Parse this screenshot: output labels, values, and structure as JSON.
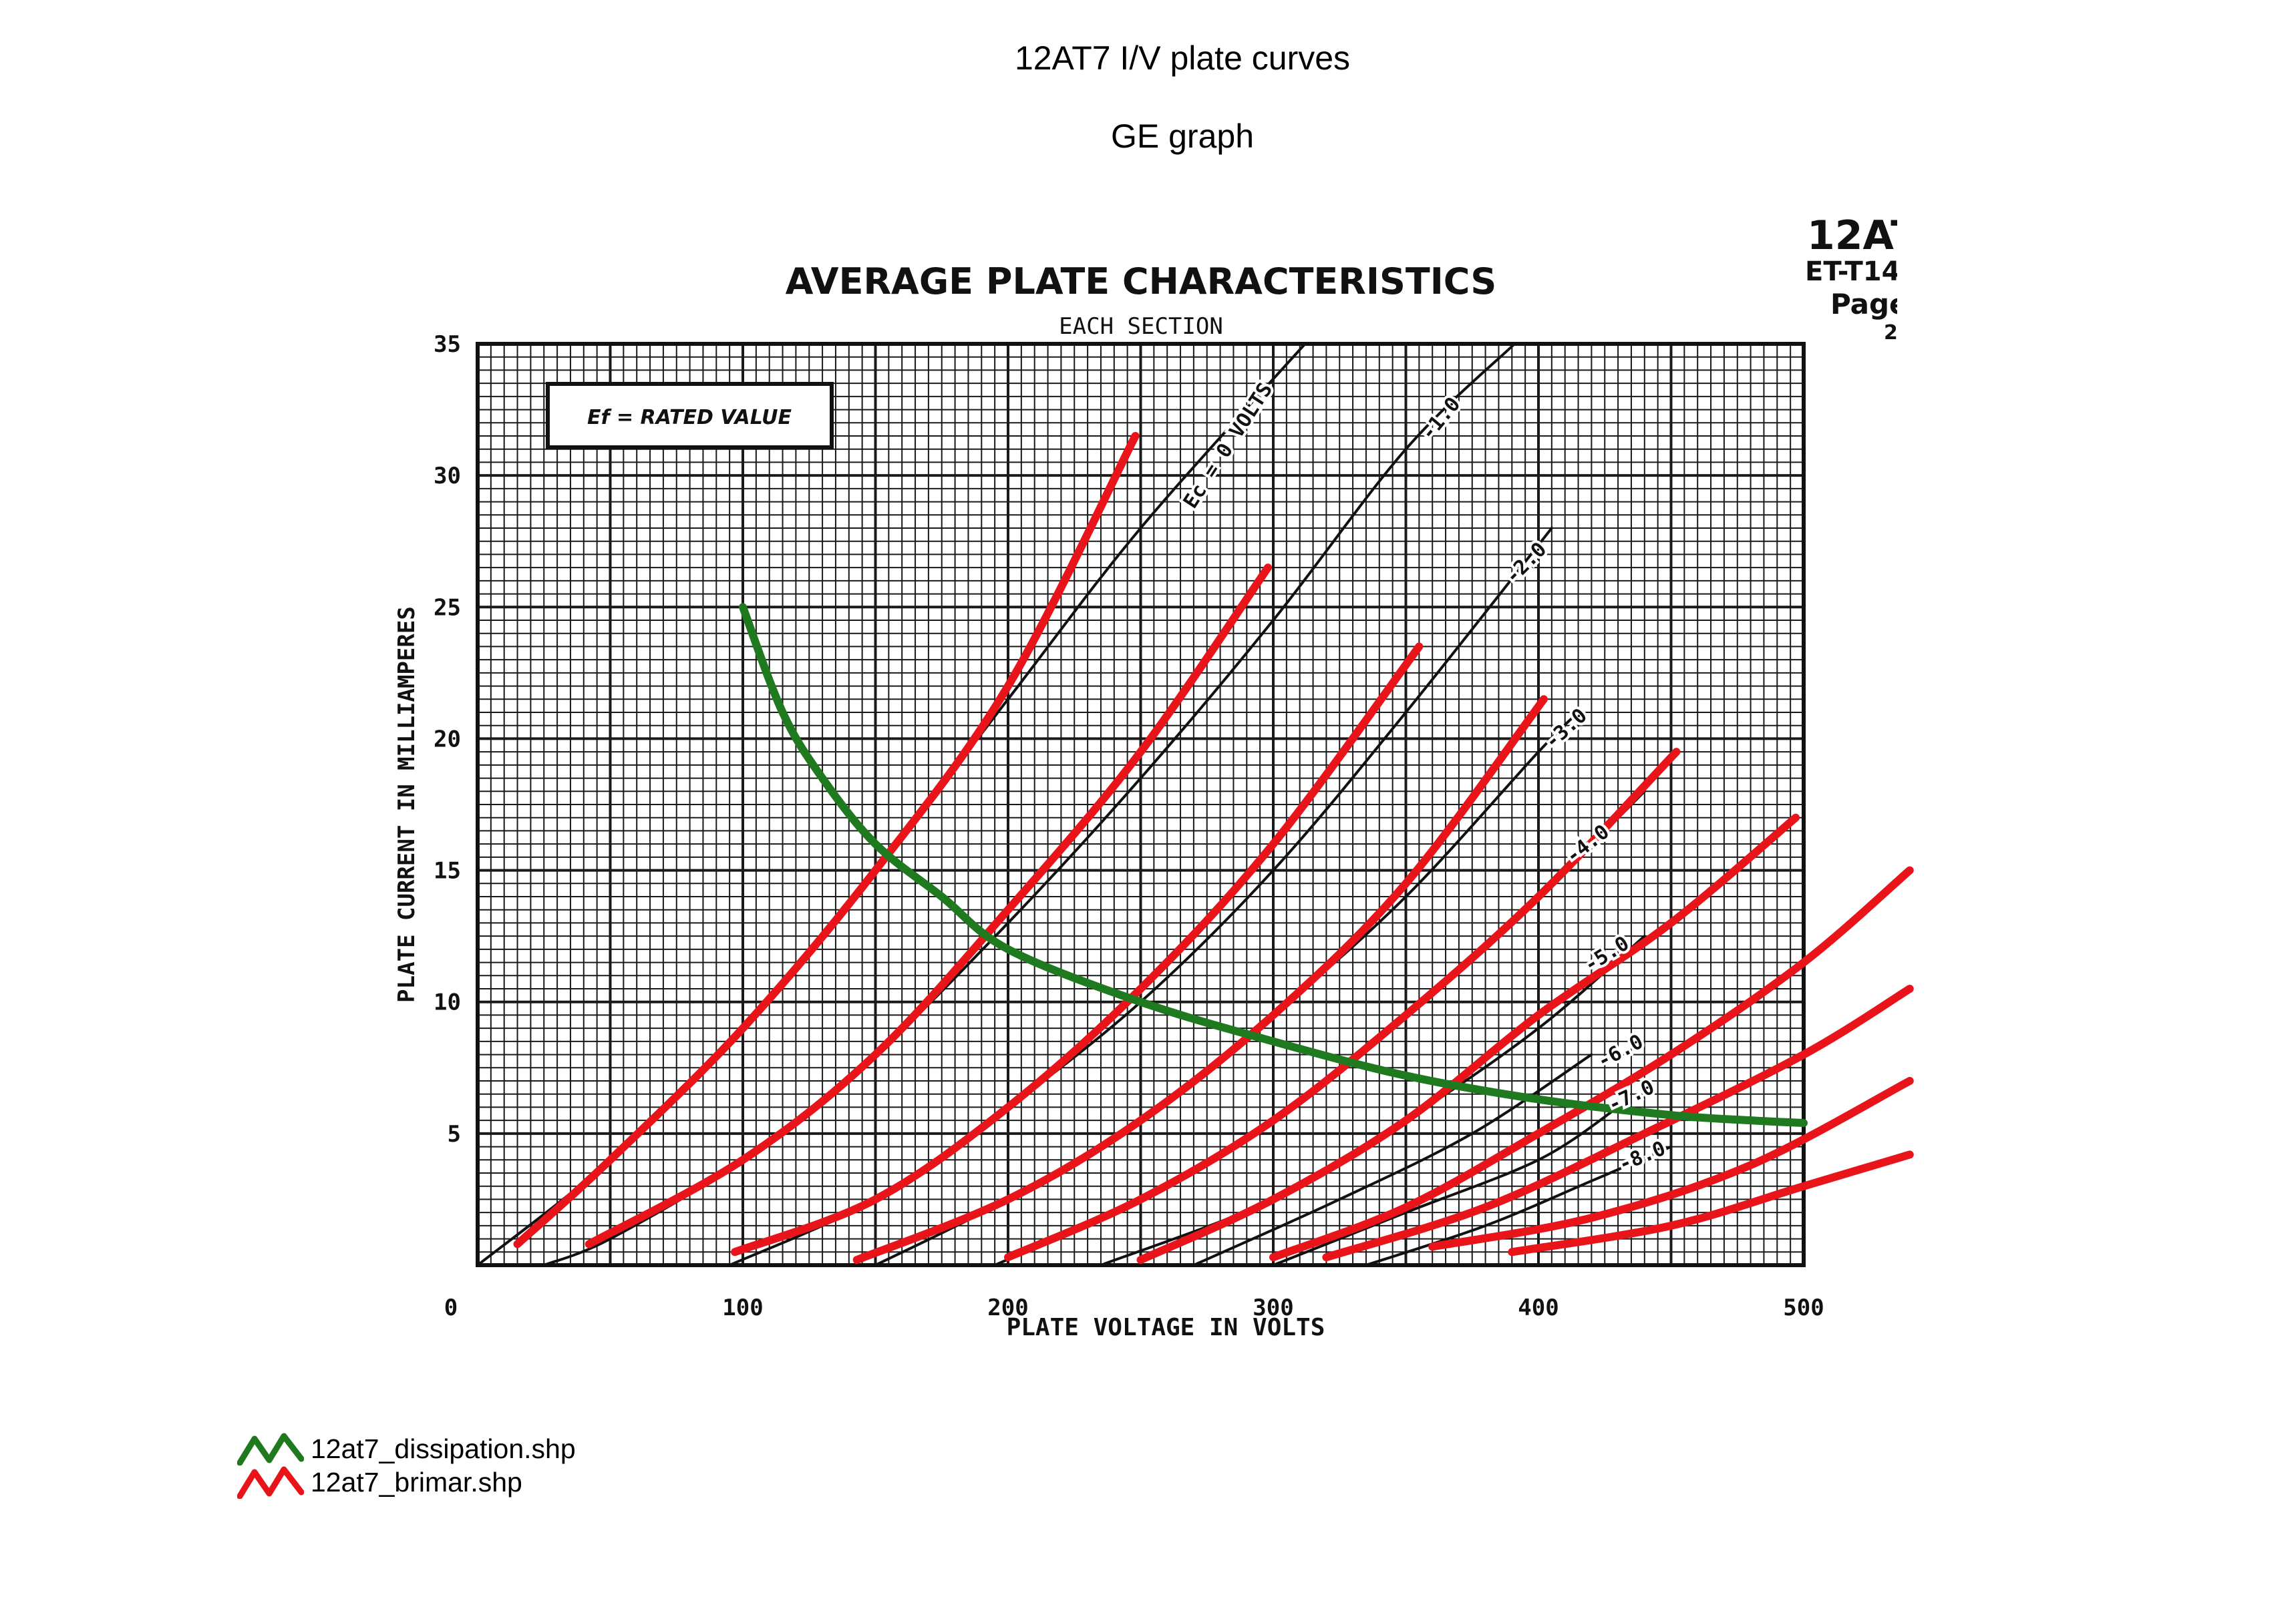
{
  "page": {
    "title": "12AT7  I/V plate curves",
    "subtitle": "GE graph"
  },
  "datasheet": {
    "tube": "12AT",
    "code": "ET-T14",
    "page": "Page",
    "page_num": "2"
  },
  "legend": {
    "items": [
      {
        "label": "12at7_dissipation.shp",
        "color": "#1f7a1f"
      },
      {
        "label": "12at7_brimar.shp",
        "color": "#e8141a"
      }
    ]
  },
  "chart_data": {
    "type": "line",
    "title": "AVERAGE PLATE CHARACTERISTICS",
    "subtitle": "EACH SECTION",
    "note": "Ef = RATED VALUE",
    "xlabel": "PLATE VOLTAGE IN VOLTS",
    "ylabel": "PLATE CURRENT IN MILLIAMPERES",
    "xlim": [
      0,
      500
    ],
    "ylim": [
      0,
      35
    ],
    "x_ticks": [
      "0",
      "100",
      "200",
      "300",
      "400",
      "500"
    ],
    "y_ticks": [
      "5",
      "10",
      "15",
      "20",
      "25",
      "30",
      "35"
    ],
    "grid": true,
    "grid_color": "#1a1a1a",
    "series": [
      {
        "name": "Ec = 0 VOLTS",
        "color": "#111111",
        "points": [
          [
            0,
            0
          ],
          [
            50,
            4
          ],
          [
            100,
            9
          ],
          [
            150,
            15
          ],
          [
            200,
            21.5
          ],
          [
            250,
            28
          ],
          [
            312,
            35
          ]
        ]
      },
      {
        "name": "-1.0",
        "color": "#111111",
        "points": [
          [
            25,
            0
          ],
          [
            50,
            1
          ],
          [
            100,
            4
          ],
          [
            150,
            8
          ],
          [
            200,
            13
          ],
          [
            250,
            18.5
          ],
          [
            300,
            24.5
          ],
          [
            350,
            31
          ],
          [
            391,
            35
          ]
        ]
      },
      {
        "name": "-2.0",
        "color": "#111111",
        "points": [
          [
            95,
            0
          ],
          [
            150,
            2.5
          ],
          [
            200,
            6
          ],
          [
            250,
            10
          ],
          [
            300,
            15
          ],
          [
            350,
            21
          ],
          [
            405,
            28
          ]
        ]
      },
      {
        "name": "-3.0",
        "color": "#111111",
        "points": [
          [
            150,
            0
          ],
          [
            200,
            2.5
          ],
          [
            250,
            5.5
          ],
          [
            300,
            9.5
          ],
          [
            350,
            14
          ],
          [
            400,
            19.5
          ],
          [
            415,
            21
          ]
        ]
      },
      {
        "name": "-4.0",
        "color": "#111111",
        "points": [
          [
            195,
            0
          ],
          [
            250,
            2.5
          ],
          [
            300,
            5.5
          ],
          [
            350,
            9.5
          ],
          [
            400,
            14
          ],
          [
            440,
            18
          ]
        ]
      },
      {
        "name": "-5.0",
        "color": "#111111",
        "points": [
          [
            235,
            0
          ],
          [
            300,
            2.5
          ],
          [
            350,
            5.5
          ],
          [
            400,
            9
          ],
          [
            440,
            12.5
          ]
        ]
      },
      {
        "name": "-6.0",
        "color": "#111111",
        "points": [
          [
            270,
            0
          ],
          [
            325,
            2.5
          ],
          [
            375,
            5
          ],
          [
            420,
            8
          ]
        ]
      },
      {
        "name": "-7.0",
        "color": "#111111",
        "points": [
          [
            300,
            0
          ],
          [
            350,
            2
          ],
          [
            400,
            4
          ],
          [
            430,
            6
          ]
        ]
      },
      {
        "name": "-8.0",
        "color": "#111111",
        "points": [
          [
            335,
            0
          ],
          [
            380,
            1.5
          ],
          [
            420,
            3.2
          ],
          [
            450,
            4.5
          ]
        ]
      },
      {
        "color": "#e8141a",
        "points": [
          [
            15,
            0.8
          ],
          [
            50,
            4
          ],
          [
            100,
            9
          ],
          [
            150,
            15
          ],
          [
            200,
            22
          ],
          [
            248,
            31.5
          ]
        ]
      },
      {
        "color": "#e8141a",
        "points": [
          [
            42,
            0.8
          ],
          [
            100,
            4
          ],
          [
            150,
            8
          ],
          [
            200,
            13.5
          ],
          [
            250,
            19.5
          ],
          [
            298,
            26.5
          ]
        ]
      },
      {
        "color": "#e8141a",
        "points": [
          [
            97,
            0.5
          ],
          [
            150,
            2.5
          ],
          [
            200,
            6
          ],
          [
            250,
            10.5
          ],
          [
            300,
            16
          ],
          [
            355,
            23.5
          ]
        ]
      },
      {
        "color": "#e8141a",
        "points": [
          [
            143,
            0.2
          ],
          [
            200,
            2.5
          ],
          [
            250,
            5.5
          ],
          [
            300,
            9.5
          ],
          [
            350,
            14.5
          ],
          [
            402,
            21.5
          ]
        ]
      },
      {
        "color": "#e8141a",
        "points": [
          [
            200,
            0.3
          ],
          [
            250,
            2.5
          ],
          [
            300,
            5.5
          ],
          [
            350,
            9.5
          ],
          [
            400,
            14
          ],
          [
            452,
            19.5
          ]
        ]
      },
      {
        "color": "#e8141a",
        "points": [
          [
            250,
            0.2
          ],
          [
            300,
            2.5
          ],
          [
            350,
            5.5
          ],
          [
            400,
            9.5
          ],
          [
            450,
            13
          ],
          [
            497,
            17
          ]
        ]
      },
      {
        "color": "#e8141a",
        "points": [
          [
            300,
            0.3
          ],
          [
            350,
            2.2
          ],
          [
            400,
            5
          ],
          [
            450,
            8
          ],
          [
            500,
            11.5
          ],
          [
            540,
            15
          ]
        ]
      },
      {
        "color": "#e8141a",
        "points": [
          [
            320,
            0.3
          ],
          [
            380,
            2.2
          ],
          [
            440,
            5
          ],
          [
            500,
            8
          ],
          [
            540,
            10.5
          ]
        ]
      },
      {
        "color": "#e8141a",
        "points": [
          [
            360,
            0.7
          ],
          [
            420,
            1.8
          ],
          [
            480,
            3.8
          ],
          [
            540,
            7
          ]
        ]
      },
      {
        "color": "#e8141a",
        "points": [
          [
            390,
            0.5
          ],
          [
            450,
            1.5
          ],
          [
            500,
            3
          ],
          [
            540,
            4.2
          ]
        ]
      },
      {
        "name": "12at7_dissipation.shp",
        "color": "#1f7a1f",
        "points": [
          [
            100,
            25
          ],
          [
            115,
            21
          ],
          [
            130,
            18.5
          ],
          [
            150,
            16
          ],
          [
            175,
            14
          ],
          [
            200,
            12
          ],
          [
            250,
            10
          ],
          [
            300,
            8.5
          ],
          [
            350,
            7.2
          ],
          [
            400,
            6.3
          ],
          [
            450,
            5.7
          ],
          [
            480,
            5.5
          ],
          [
            500,
            5.4
          ]
        ]
      }
    ],
    "curve_labels": [
      {
        "text": "Ec = 0 VOLTS",
        "x": 285,
        "y": 31,
        "angle": -57
      },
      {
        "text": "-1.0",
        "x": 365,
        "y": 32,
        "angle": -50
      },
      {
        "text": "-2.0",
        "x": 397,
        "y": 26.5,
        "angle": -45
      },
      {
        "text": "-3.0",
        "x": 412,
        "y": 20.2,
        "angle": -42
      },
      {
        "text": "-4.0",
        "x": 420,
        "y": 15.8,
        "angle": -38
      },
      {
        "text": "-5.0",
        "x": 427,
        "y": 11.6,
        "angle": -32
      },
      {
        "text": "-6.0",
        "x": 432,
        "y": 7.9,
        "angle": -28
      },
      {
        "text": "-7.0",
        "x": 436,
        "y": 6.2,
        "angle": -25
      },
      {
        "text": "-8.0",
        "x": 440,
        "y": 3.9,
        "angle": -22
      }
    ]
  }
}
